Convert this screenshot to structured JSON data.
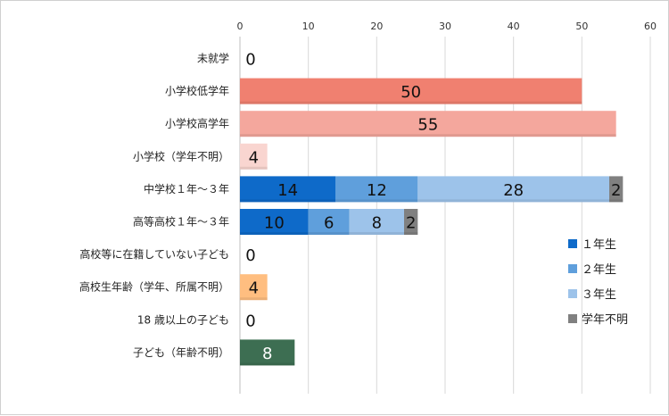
{
  "chart_data": {
    "type": "bar",
    "orientation": "horizontal",
    "stacked": true,
    "xlim": [
      0,
      60
    ],
    "ticks": [
      0,
      10,
      20,
      30,
      40,
      50,
      60
    ],
    "axis_position": "top",
    "grid": true,
    "legend_position": "right",
    "categories": [
      "未就学",
      "小学校低学年",
      "小学校高学年",
      "小学校（学年不明）",
      "中学校１年～３年",
      "高等高校１年～３年",
      "高校等に在籍していない子ども",
      "高校生年齢（学年、所属不明）",
      "18 歳以上の子ども",
      "子ども（年齢不明）"
    ],
    "rows": [
      {
        "segments": [
          {
            "value": 0,
            "color": "#f08070",
            "label": "0",
            "label_color": "#111111"
          }
        ]
      },
      {
        "segments": [
          {
            "value": 50,
            "color": "#f08070",
            "label": "50",
            "label_color": "#111111"
          }
        ]
      },
      {
        "segments": [
          {
            "value": 55,
            "color": "#f4a79d",
            "label": "55",
            "label_color": "#111111"
          }
        ]
      },
      {
        "segments": [
          {
            "value": 4,
            "color": "#f9d5d0",
            "label": "4",
            "label_color": "#111111"
          }
        ]
      },
      {
        "segments": [
          {
            "value": 14,
            "color": "#0e6ac9",
            "label": "14",
            "label_color": "#111111"
          },
          {
            "value": 12,
            "color": "#5f9fdc",
            "label": "12",
            "label_color": "#111111"
          },
          {
            "value": 28,
            "color": "#9dc3ea",
            "label": "28",
            "label_color": "#111111"
          },
          {
            "value": 2,
            "color": "#808080",
            "label": "2",
            "label_color": "#111111"
          }
        ]
      },
      {
        "segments": [
          {
            "value": 10,
            "color": "#0e6ac9",
            "label": "10",
            "label_color": "#111111"
          },
          {
            "value": 6,
            "color": "#5f9fdc",
            "label": "6",
            "label_color": "#111111"
          },
          {
            "value": 8,
            "color": "#9dc3ea",
            "label": "8",
            "label_color": "#111111"
          },
          {
            "value": 2,
            "color": "#808080",
            "label": "2",
            "label_color": "#111111"
          }
        ]
      },
      {
        "segments": [
          {
            "value": 0,
            "color": "#ffbe80",
            "label": "0",
            "label_color": "#111111"
          }
        ]
      },
      {
        "segments": [
          {
            "value": 4,
            "color": "#ffbe80",
            "label": "4",
            "label_color": "#111111"
          }
        ]
      },
      {
        "segments": [
          {
            "value": 0,
            "color": "#3d6e52",
            "label": "0",
            "label_color": "#111111"
          }
        ]
      },
      {
        "segments": [
          {
            "value": 8,
            "color": "#3d6e52",
            "label": "8",
            "label_color": "#ffffff"
          }
        ]
      }
    ],
    "legend": [
      {
        "label": "１年生",
        "color": "#0e6ac9"
      },
      {
        "label": "２年生",
        "color": "#5f9fdc"
      },
      {
        "label": "３年生",
        "color": "#9dc3ea"
      },
      {
        "label": "学年不明",
        "color": "#808080"
      }
    ]
  }
}
